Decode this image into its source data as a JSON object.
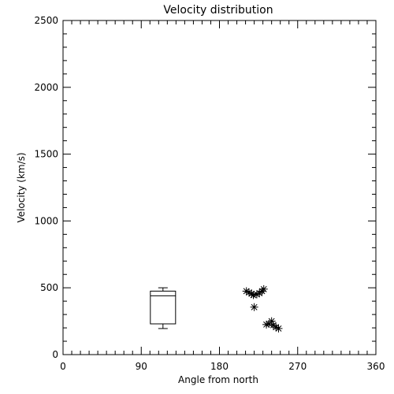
{
  "chart_data": {
    "type": "scatter",
    "title": "Velocity distribution",
    "xlabel": "Angle from north",
    "ylabel": "Velocity (km/s)",
    "xlim": [
      0,
      360
    ],
    "ylim": [
      0,
      2500
    ],
    "xticks": [
      0,
      90,
      180,
      270,
      360
    ],
    "yticks": [
      0,
      500,
      1000,
      1500,
      2000,
      2500
    ],
    "xtick_labels": [
      "0",
      "90",
      "180",
      "270",
      "360"
    ],
    "ytick_labels": [
      "0",
      "500",
      "1000",
      "1500",
      "2000",
      "2500"
    ],
    "x_minor_step": 10,
    "y_minor_step": 100,
    "grid": false,
    "marker": "asterisk",
    "box": {
      "x": 115,
      "whisker_low": 195,
      "q1": 230,
      "median": 440,
      "q3": 475,
      "whisker_high": 500
    },
    "points": [
      {
        "x": 211,
        "y": 475
      },
      {
        "x": 214,
        "y": 465
      },
      {
        "x": 217,
        "y": 455
      },
      {
        "x": 219,
        "y": 445
      },
      {
        "x": 223,
        "y": 450
      },
      {
        "x": 226,
        "y": 460
      },
      {
        "x": 229,
        "y": 475
      },
      {
        "x": 231,
        "y": 490
      },
      {
        "x": 220,
        "y": 355
      },
      {
        "x": 234,
        "y": 225
      },
      {
        "x": 237,
        "y": 230
      },
      {
        "x": 240,
        "y": 250
      },
      {
        "x": 242,
        "y": 220
      },
      {
        "x": 245,
        "y": 205
      },
      {
        "x": 248,
        "y": 195
      }
    ]
  }
}
